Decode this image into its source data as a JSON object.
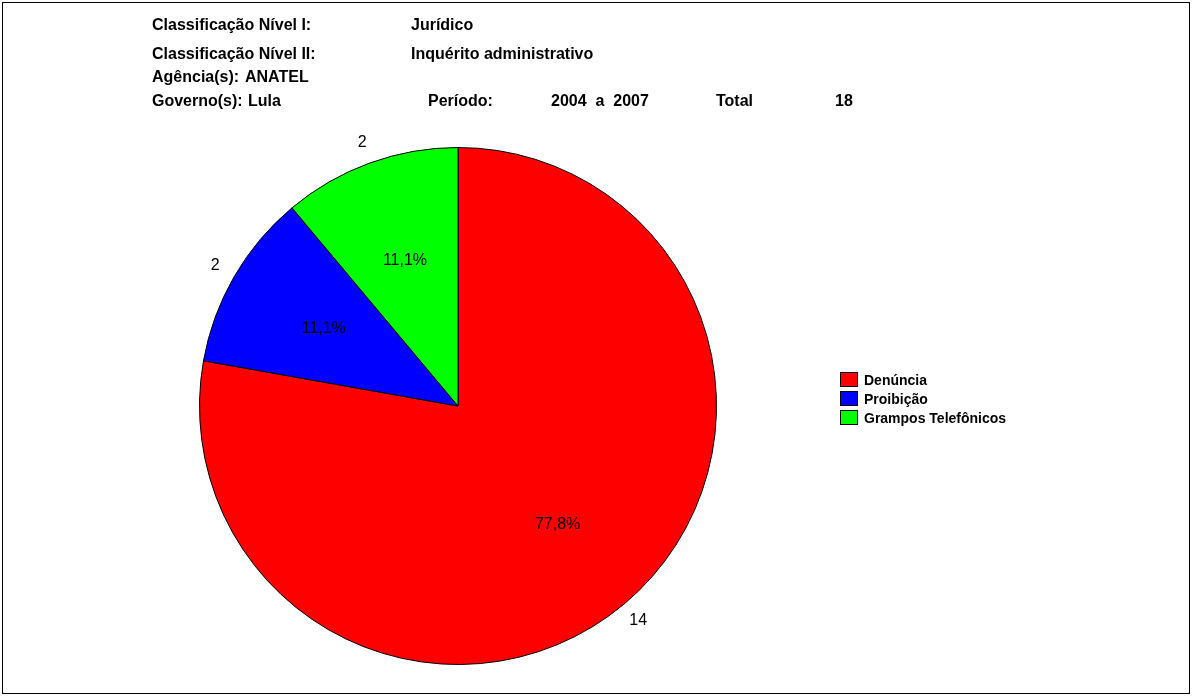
{
  "chart_data": {
    "type": "pie",
    "annotations": [
      "Classificação Nível I:",
      "Jurídico",
      "Classificação Nível II:",
      "Inquérito administrativo",
      "Agência(s):",
      "ANATEL",
      "Governo(s):",
      "Lula",
      "Período:",
      "2004  a  2007",
      "Total",
      "18",
      {
        "text": "14",
        "x": "Denúncia"
      },
      {
        "text": "2",
        "x": "Proibição"
      },
      {
        "text": "2",
        "x": "Grampos Telefônicos"
      }
    ],
    "categories": [
      "Denúncia",
      "Proibição",
      "Grampos Telefônicos"
    ],
    "values": [
      77.8,
      11.1,
      11.1
    ],
    "colors": [
      "#ff0000",
      "#0000ff",
      "#00ff00"
    ],
    "value_labels": [
      "77,8%",
      "11,1%",
      "11,1%"
    ],
    "legend": "right"
  }
}
